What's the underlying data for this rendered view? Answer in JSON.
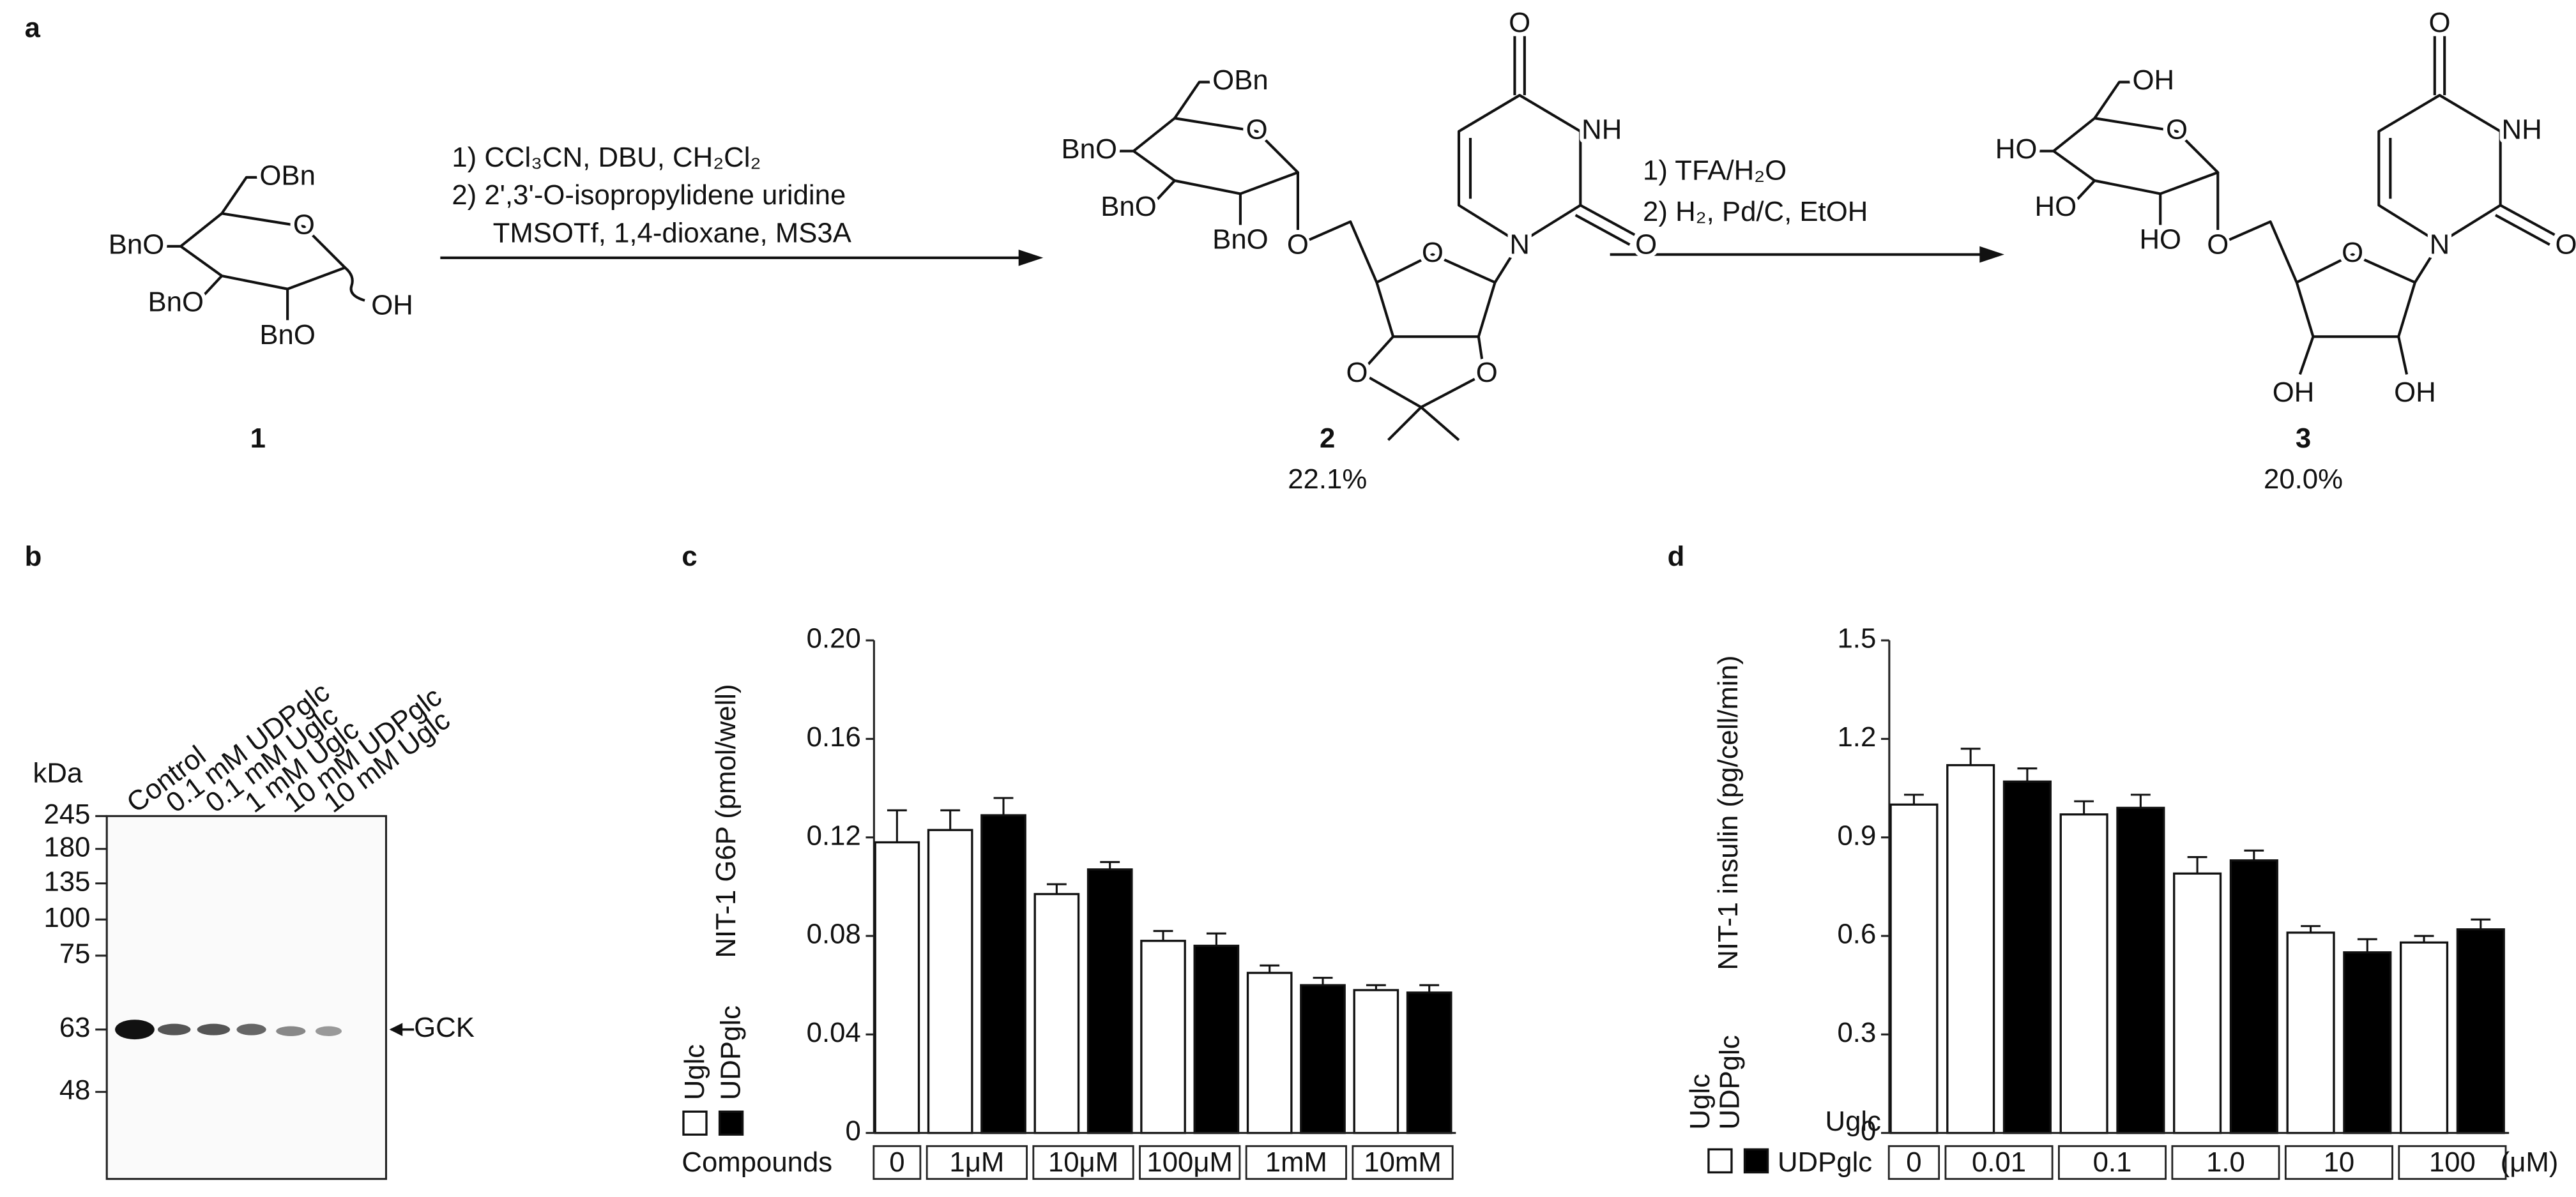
{
  "scheme": {
    "panel": "a",
    "compounds": [
      {
        "number": "1",
        "atoms": [
          "OBn",
          "BnO",
          "BnO",
          "O",
          "BnO",
          "OH"
        ]
      },
      {
        "number": "2",
        "yield": "22.1%",
        "atoms": [
          "OBn",
          "BnO",
          "BnO",
          "O",
          "BnO",
          "O",
          "O",
          "O",
          "O",
          "N",
          "NH",
          "O",
          "O"
        ]
      },
      {
        "number": "3",
        "yield": "20.0%",
        "atoms": [
          "OH",
          "HO",
          "HO",
          "O",
          "HO",
          "O",
          "O",
          "OH",
          "OH",
          "N",
          "NH",
          "O",
          "O"
        ]
      }
    ],
    "steps": [
      {
        "lines": [
          "1) CCl₃CN, DBU, CH₂Cl₂",
          "2) 2',3'-O-isopropylidene uridine",
          "TMSOTf, 1,4-dioxane, MS3A"
        ]
      },
      {
        "lines": [
          "1) TFA/H₂O",
          "2) H₂, Pd/C, EtOH"
        ]
      }
    ]
  },
  "blot": {
    "panel": "b",
    "unit": "kDa",
    "markers": [
      245,
      180,
      135,
      100,
      75,
      63,
      48
    ],
    "lanes": [
      "Control",
      "0.1 mM UDPglc",
      "0.1 mM Uglc",
      "1 mM Uglc",
      "10 mM UDPglc",
      "10 mM Uglc"
    ],
    "target": "GCK"
  },
  "chart_data": [
    {
      "type": "bar",
      "panel": "c",
      "y_label": "NIT-1 G6P (pmol/well)",
      "x_label": "Compounds",
      "categories": [
        "0",
        "1μM",
        "10μM",
        "100μM",
        "1mM",
        "10mM"
      ],
      "series": [
        {
          "name": "Uglc",
          "color": "#ffffff",
          "values": [
            0.118,
            0.123,
            0.097,
            0.078,
            0.065,
            0.058
          ],
          "errors": [
            0.013,
            0.008,
            0.004,
            0.004,
            0.003,
            0.002
          ]
        },
        {
          "name": "UDPglc",
          "color": "#000000",
          "values": [
            null,
            0.129,
            0.107,
            0.076,
            0.06,
            0.057
          ],
          "errors": [
            null,
            0.007,
            0.003,
            0.005,
            0.003,
            0.003
          ]
        }
      ],
      "ylim": [
        0,
        0.2
      ],
      "yticks": [
        0,
        0.04,
        0.08,
        0.12,
        0.16,
        {
          "value": 0.2,
          "label": "0.20"
        }
      ]
    },
    {
      "type": "bar",
      "panel": "d",
      "y_label": "NIT-1 insulin (pg/cell/min)",
      "x_unit": "(μM)",
      "categories": [
        "0",
        "0.01",
        "0.1",
        "1.0",
        "10",
        "100"
      ],
      "series": [
        {
          "name": "Uglc",
          "color": "#ffffff",
          "values": [
            1.0,
            1.12,
            0.97,
            0.79,
            0.61,
            0.58
          ],
          "errors": [
            0.03,
            0.05,
            0.04,
            0.05,
            0.02,
            0.02
          ]
        },
        {
          "name": "UDPglc",
          "color": "#000000",
          "values": [
            null,
            1.07,
            0.99,
            0.83,
            0.55,
            0.62
          ],
          "errors": [
            null,
            0.04,
            0.04,
            0.03,
            0.04,
            0.03
          ]
        }
      ],
      "ylim": [
        0,
        1.5
      ],
      "yticks": [
        0,
        0.3,
        0.6,
        0.9,
        1.2,
        1.5
      ]
    }
  ]
}
